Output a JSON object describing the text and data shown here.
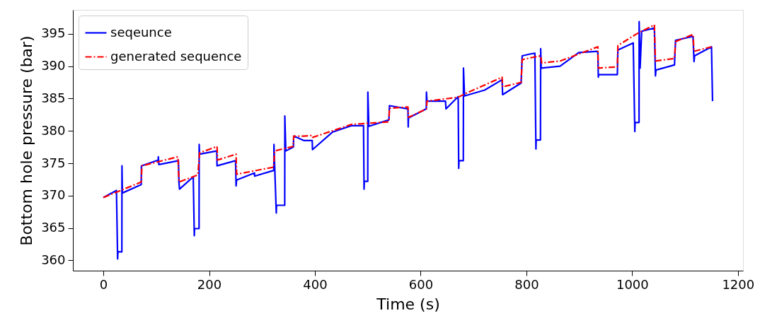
{
  "chart_data": {
    "type": "line",
    "xlabel": "Time (s)",
    "ylabel": "Bottom hole pressure (bar)",
    "xlim": [
      -57.6,
      1209.6
    ],
    "ylim": [
      358.4,
      398.7
    ],
    "xticks": [
      0,
      200,
      400,
      600,
      800,
      1000,
      1200
    ],
    "yticks": [
      360,
      365,
      370,
      375,
      380,
      385,
      390,
      395
    ],
    "grid": false,
    "legend": "top left",
    "marker": "none",
    "series": [
      {
        "name": "seqeunce",
        "color": "#0000ff",
        "line_style": "solid",
        "x": [
          0,
          24.8,
          27,
          27.5,
          35,
          35.2,
          36,
          71.6,
          72,
          103.7,
          104,
          105,
          142,
          143,
          144,
          170,
          172,
          172.5,
          181,
          181.2,
          182,
          214.5,
          215,
          250,
          251,
          252,
          285.8,
          286,
          322.4,
          322.6,
          327,
          327.5,
          343,
          343.2,
          345,
          359.4,
          360,
          379.5,
          395,
          395.5,
          433,
          468.8,
          492,
          493,
          493.5,
          500,
          500.2,
          502,
          540,
          541,
          576,
          576.5,
          577,
          610.7,
          611,
          612,
          647,
          648,
          671,
          672,
          672.5,
          680.7,
          681,
          683,
          721,
          754,
          755,
          790,
          792,
          808,
          816,
          818,
          818.5,
          826.6,
          827,
          828,
          863.7,
          899,
          935,
          936,
          936.5,
          972,
          973,
          1002,
          1005,
          1005.5,
          1013,
          1013.2,
          1015,
          1018,
          1042,
          1044,
          1045,
          1080,
          1082,
          1115,
          1117,
          1118,
          1150,
          1152
        ],
        "values": [
          369.7,
          370.8,
          360.2,
          361.3,
          361.3,
          374.6,
          370.4,
          371.7,
          374.6,
          375.5,
          376.0,
          374.8,
          375.4,
          372.0,
          371.0,
          372.9,
          363.8,
          364.9,
          364.9,
          377.9,
          376.4,
          376.9,
          374.6,
          375.4,
          371.5,
          372.4,
          373.5,
          373.0,
          373.9,
          377.9,
          367.3,
          368.5,
          368.5,
          382.3,
          376.9,
          377.5,
          379.2,
          378.5,
          378.5,
          377.1,
          379.8,
          380.8,
          380.8,
          371.0,
          372.2,
          372.2,
          386.0,
          380.7,
          381.7,
          383.9,
          383.4,
          380.6,
          382.0,
          383.4,
          386.0,
          384.6,
          384.6,
          383.4,
          385.3,
          374.2,
          375.4,
          375.4,
          389.7,
          385.4,
          386.3,
          387.9,
          385.6,
          387.4,
          391.6,
          391.9,
          392.0,
          377.2,
          378.6,
          378.6,
          392.7,
          389.7,
          390.0,
          392.1,
          392.3,
          388.3,
          388.7,
          388.7,
          392.5,
          393.6,
          379.9,
          381.3,
          381.3,
          396.9,
          389.7,
          395.4,
          395.9,
          388.5,
          389.4,
          390.2,
          394.0,
          394.6,
          390.7,
          391.6,
          393.0,
          384.6
        ]
      },
      {
        "name": "generated sequence",
        "color": "#ff0000",
        "line_style": "dashed",
        "x": [
          0,
          71.6,
          73,
          141,
          143,
          178.7,
          182,
          215,
          216,
          251,
          252,
          322,
          324,
          359,
          360,
          379.5,
          395,
          396,
          469,
          540,
          541,
          576,
          577,
          611,
          612,
          671,
          683,
          754,
          755,
          790,
          792,
          808,
          827,
          829,
          864,
          935,
          936,
          972,
          973,
          1008.6,
          1042,
          1044,
          1080,
          1082,
          1115,
          1117,
          1150
        ],
        "values": [
          369.7,
          372.1,
          374.6,
          376.0,
          372.1,
          373.2,
          376.6,
          377.6,
          375.5,
          376.4,
          373.3,
          374.4,
          376.9,
          377.6,
          379.2,
          379.2,
          379.3,
          379.0,
          381.0,
          381.4,
          383.5,
          383.7,
          382.1,
          383.4,
          384.6,
          385.2,
          385.7,
          388.3,
          386.8,
          387.5,
          391.0,
          391.3,
          391.6,
          390.5,
          390.8,
          393.0,
          389.7,
          389.9,
          393.2,
          395.0,
          396.4,
          390.8,
          391.2,
          393.8,
          394.9,
          392.3,
          393.0
        ]
      }
    ]
  }
}
